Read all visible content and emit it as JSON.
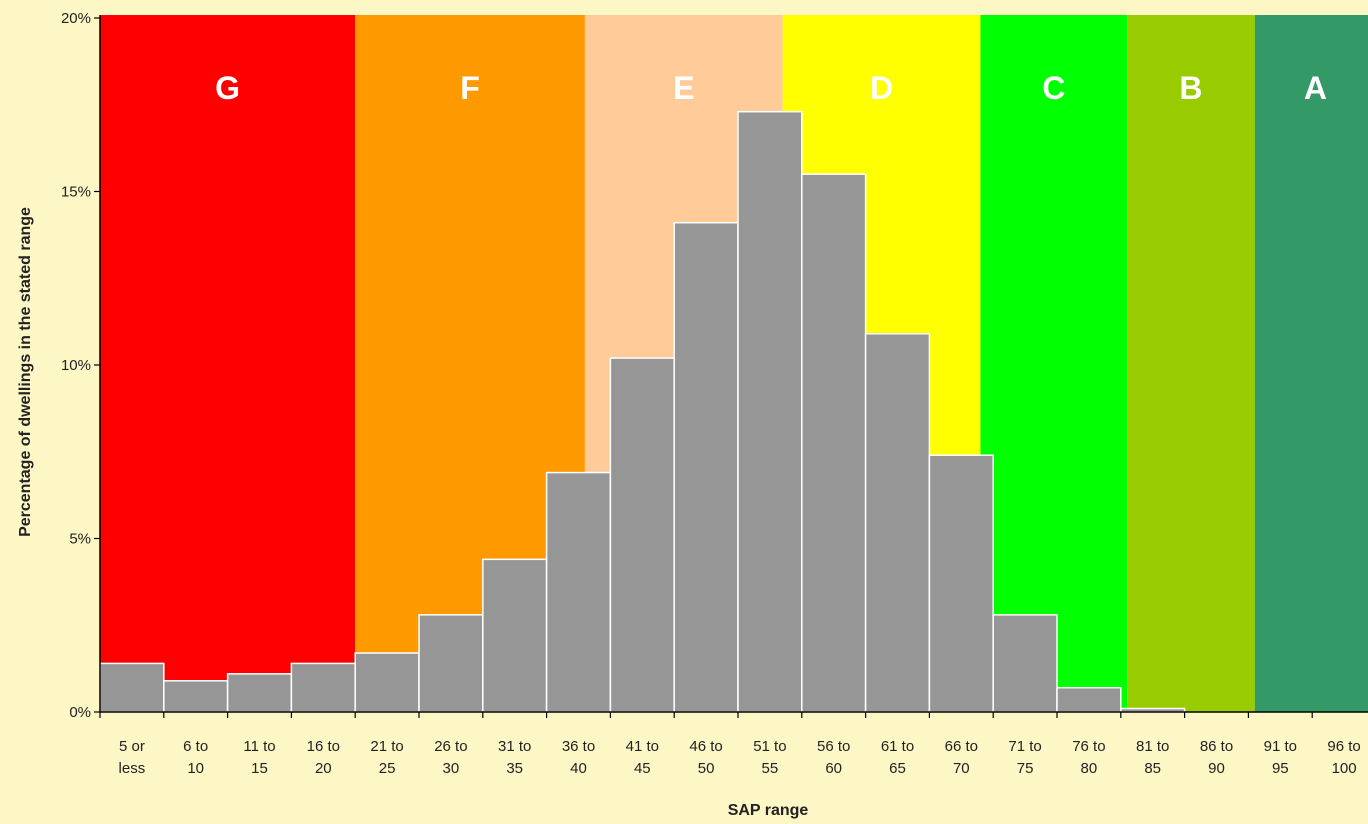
{
  "chart_data": {
    "type": "bar",
    "xlabel": "SAP range",
    "ylabel": "Percentage of dwellings in the stated range",
    "ylim": [
      0,
      20
    ],
    "y_ticks": [
      "0%",
      "5%",
      "10%",
      "15%",
      "20%"
    ],
    "y_tick_values": [
      0,
      5,
      10,
      15,
      20
    ],
    "categories": [
      [
        "5 or",
        "less"
      ],
      [
        "6 to",
        "10"
      ],
      [
        "11 to",
        "15"
      ],
      [
        "16 to",
        "20"
      ],
      [
        "21 to",
        "25"
      ],
      [
        "26 to",
        "30"
      ],
      [
        "31 to",
        "35"
      ],
      [
        "36 to",
        "40"
      ],
      [
        "41 to",
        "45"
      ],
      [
        "46 to",
        "50"
      ],
      [
        "51 to",
        "55"
      ],
      [
        "56 to",
        "60"
      ],
      [
        "61 to",
        "65"
      ],
      [
        "66 to",
        "70"
      ],
      [
        "71 to",
        "75"
      ],
      [
        "76 to",
        "80"
      ],
      [
        "81 to",
        "85"
      ],
      [
        "86 to",
        "90"
      ],
      [
        "91 to",
        "95"
      ],
      [
        "96 to",
        "100"
      ]
    ],
    "values": [
      1.4,
      0.9,
      1.1,
      1.4,
      1.7,
      2.8,
      4.4,
      6.9,
      10.2,
      14.1,
      17.3,
      15.5,
      10.9,
      7.4,
      2.8,
      0.7,
      0.1,
      0,
      0,
      0
    ],
    "bar_color": "#969696",
    "bands": [
      {
        "label": "G",
        "from": 0,
        "to": 4,
        "color": "#ff0000"
      },
      {
        "label": "F",
        "from": 4,
        "to": 7.6,
        "color": "#ff9900"
      },
      {
        "label": "E",
        "from": 7.6,
        "to": 10.7,
        "color": "#ffcc99"
      },
      {
        "label": "D",
        "from": 10.7,
        "to": 13.8,
        "color": "#ffff00"
      },
      {
        "label": "C",
        "from": 13.8,
        "to": 16.1,
        "color": "#00ff00"
      },
      {
        "label": "B",
        "from": 16.1,
        "to": 18.1,
        "color": "#99cc00"
      },
      {
        "label": "A",
        "from": 18.1,
        "to": 20,
        "color": "#339966"
      }
    ],
    "background": "#fdf7c6"
  }
}
